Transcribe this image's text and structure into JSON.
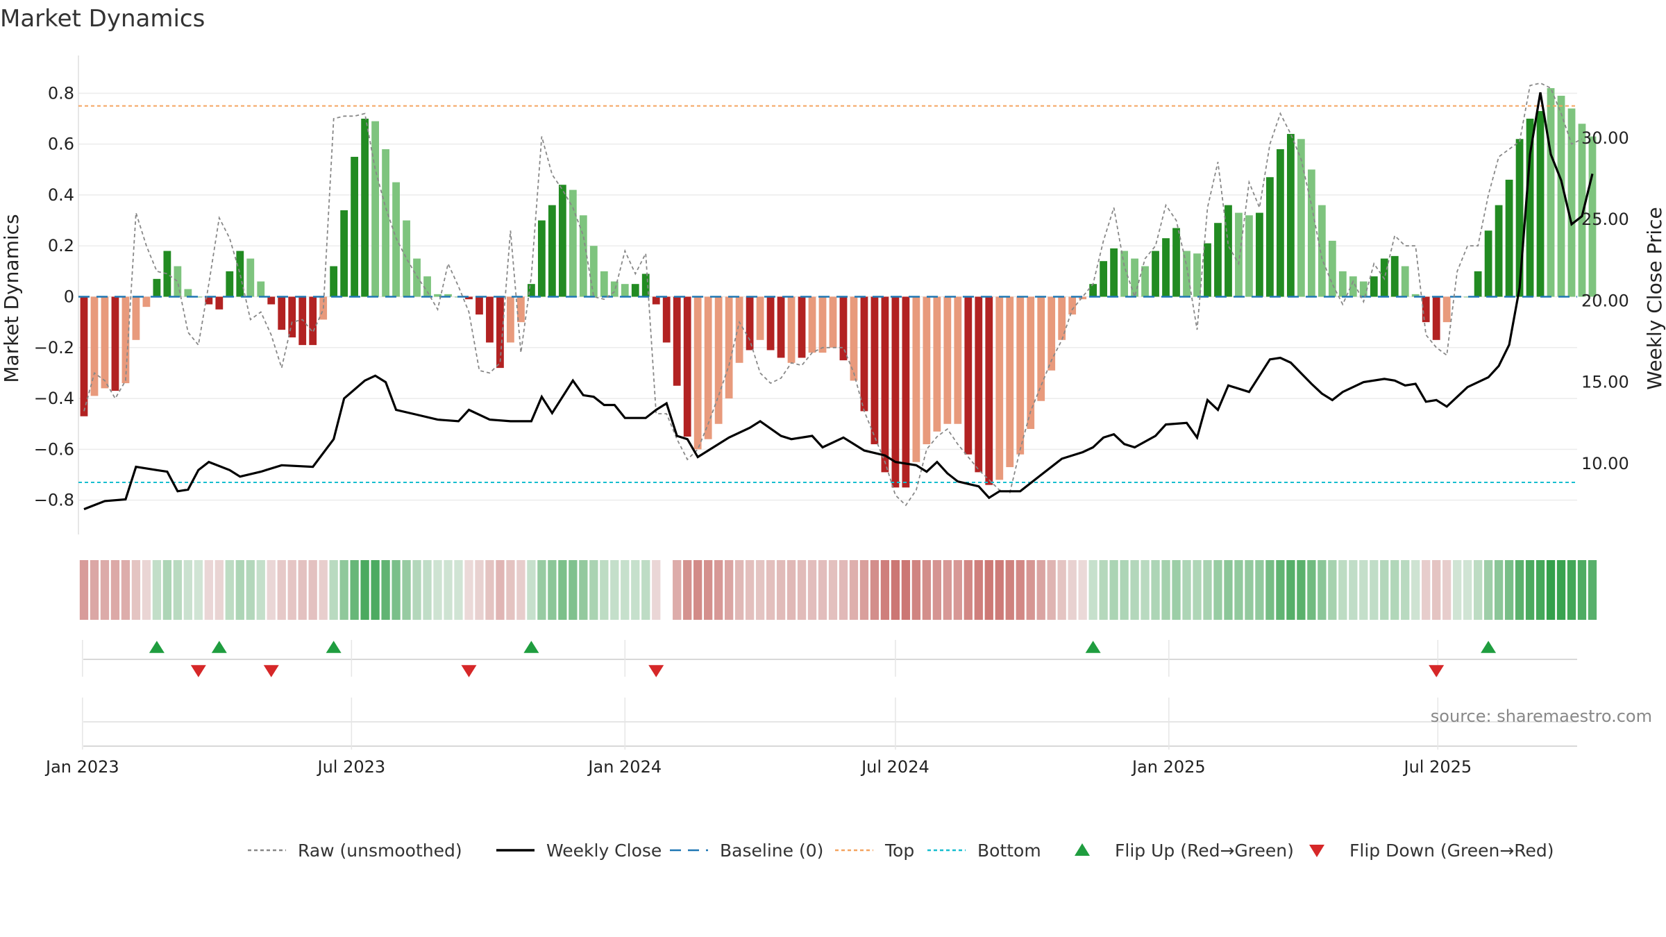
{
  "title": "Market Dynamics",
  "source": "source: sharemaestro.com",
  "colors": {
    "strong_green": "#228b22",
    "weak_green": "#7ec47e",
    "strong_red": "#b22222",
    "weak_red": "#e89a7c",
    "raw": "#888888",
    "close": "#000000",
    "baseline": "#1f77b4",
    "top": "#f4a460",
    "bottom": "#17becf",
    "flip_up": "#1f9d3f",
    "flip_down": "#d62728"
  },
  "legend": [
    {
      "key": "raw",
      "label": "Raw (unsmoothed)"
    },
    {
      "key": "close",
      "label": "Weekly Close"
    },
    {
      "key": "baseline",
      "label": "Baseline (0)"
    },
    {
      "key": "top",
      "label": "Top"
    },
    {
      "key": "bottom",
      "label": "Bottom"
    },
    {
      "key": "flip_up",
      "label": "Flip Up (Red→Green)"
    },
    {
      "key": "flip_down",
      "label": "Flip Down (Green→Red)"
    }
  ],
  "chart_data": {
    "type": "bar",
    "title": "Market Dynamics",
    "ylabel": "Market Dynamics",
    "y2label": "Weekly Close Price",
    "ylim": [
      -0.88,
      0.88
    ],
    "y2lim": [
      6.5,
      34.0
    ],
    "yticks": [
      "−0.8",
      "−0.6",
      "−0.4",
      "−0.2",
      "0",
      "0.2",
      "0.4",
      "0.6",
      "0.8"
    ],
    "yticks_values": [
      -0.8,
      -0.6,
      -0.4,
      -0.2,
      0,
      0.2,
      0.4,
      0.6,
      0.8
    ],
    "y2ticks": [
      "10.00",
      "15.00",
      "20.00",
      "25.00",
      "30.00"
    ],
    "y2ticks_values": [
      10,
      15,
      20,
      25,
      30
    ],
    "x_start": "2023-01-02",
    "x_end": "2025-09-29",
    "xticks": [
      {
        "date": "2023-01-01",
        "label": "Jan 2023"
      },
      {
        "date": "2023-07-01",
        "label": "Jul 2023"
      },
      {
        "date": "2024-01-01",
        "label": "Jan 2024"
      },
      {
        "date": "2024-07-01",
        "label": "Jul 2024"
      },
      {
        "date": "2025-01-01",
        "label": "Jan 2025"
      },
      {
        "date": "2025-07-01",
        "label": "Jul 2025"
      }
    ],
    "top_level": 0.75,
    "bottom_level": -0.73,
    "baseline_level": 0,
    "legend_position": "bottom",
    "grid": true,
    "bar_values": [
      -0.47,
      -0.39,
      -0.36,
      -0.37,
      -0.34,
      -0.17,
      -0.04,
      0.07,
      0.18,
      0.12,
      0.03,
      0.0,
      -0.03,
      -0.05,
      0.1,
      0.18,
      0.15,
      0.06,
      -0.03,
      -0.13,
      -0.16,
      -0.19,
      -0.19,
      -0.09,
      0.12,
      0.34,
      0.55,
      0.7,
      0.69,
      0.58,
      0.45,
      0.3,
      0.15,
      0.08,
      0.01,
      0.01,
      0.0,
      -0.01,
      -0.07,
      -0.18,
      -0.28,
      -0.18,
      -0.1,
      0.05,
      0.3,
      0.36,
      0.44,
      0.42,
      0.32,
      0.2,
      0.1,
      0.06,
      0.05,
      0.05,
      0.09,
      -0.03,
      -0.18,
      -0.35,
      -0.55,
      -0.6,
      -0.56,
      -0.5,
      -0.4,
      -0.26,
      -0.21,
      -0.17,
      -0.21,
      -0.24,
      -0.26,
      -0.24,
      -0.22,
      -0.22,
      -0.2,
      -0.25,
      -0.33,
      -0.45,
      -0.58,
      -0.69,
      -0.75,
      -0.75,
      -0.65,
      -0.58,
      -0.53,
      -0.5,
      -0.5,
      -0.62,
      -0.69,
      -0.74,
      -0.72,
      -0.67,
      -0.62,
      -0.52,
      -0.41,
      -0.29,
      -0.17,
      -0.07,
      -0.01,
      0.05,
      0.14,
      0.19,
      0.18,
      0.15,
      0.12,
      0.18,
      0.23,
      0.27,
      0.18,
      0.17,
      0.21,
      0.29,
      0.36,
      0.33,
      0.32,
      0.33,
      0.47,
      0.58,
      0.64,
      0.62,
      0.5,
      0.36,
      0.22,
      0.1,
      0.08,
      0.06,
      0.08,
      0.15,
      0.16,
      0.12,
      0.01,
      -0.1,
      -0.17,
      -0.1,
      0.0,
      0.0,
      0.1,
      0.26,
      0.36,
      0.46,
      0.62,
      0.7,
      0.73,
      0.82,
      0.79,
      0.74,
      0.68,
      0.63
    ],
    "bar_strength": [
      1,
      0,
      0,
      1,
      0,
      0,
      0,
      1,
      1,
      0,
      0,
      0,
      1,
      1,
      1,
      1,
      0,
      0,
      1,
      1,
      1,
      1,
      1,
      0,
      1,
      1,
      1,
      1,
      0,
      0,
      0,
      0,
      0,
      0,
      0,
      0,
      0,
      1,
      1,
      1,
      1,
      0,
      0,
      1,
      1,
      1,
      1,
      0,
      0,
      0,
      0,
      0,
      0,
      1,
      1,
      1,
      1,
      1,
      1,
      0,
      0,
      0,
      0,
      0,
      1,
      0,
      1,
      1,
      0,
      1,
      0,
      0,
      0,
      1,
      0,
      1,
      1,
      1,
      1,
      1,
      0,
      0,
      0,
      0,
      0,
      1,
      1,
      1,
      0,
      0,
      0,
      0,
      0,
      0,
      0,
      0,
      0,
      1,
      1,
      1,
      0,
      0,
      0,
      1,
      1,
      1,
      0,
      0,
      1,
      1,
      1,
      0,
      0,
      1,
      1,
      1,
      1,
      0,
      0,
      0,
      0,
      0,
      0,
      0,
      1,
      1,
      1,
      0,
      0,
      1,
      1,
      0,
      0,
      0,
      1,
      1,
      1,
      1,
      1,
      1,
      1,
      0,
      0,
      0,
      0
    ],
    "raw_values": [
      -0.45,
      -0.3,
      -0.33,
      -0.4,
      -0.33,
      0.33,
      0.2,
      0.1,
      0.09,
      0.06,
      -0.14,
      -0.19,
      0.05,
      0.31,
      0.23,
      0.09,
      -0.09,
      -0.06,
      -0.15,
      -0.28,
      -0.1,
      -0.09,
      -0.14,
      -0.05,
      0.7,
      0.71,
      0.71,
      0.72,
      0.5,
      0.35,
      0.23,
      0.15,
      0.08,
      0.02,
      -0.05,
      0.13,
      0.04,
      -0.06,
      -0.29,
      -0.3,
      -0.26,
      0.26,
      -0.22,
      0.08,
      0.63,
      0.48,
      0.42,
      0.35,
      0.24,
      0.0,
      -0.01,
      0.02,
      0.18,
      0.09,
      0.17,
      -0.46,
      -0.46,
      -0.56,
      -0.64,
      -0.6,
      -0.5,
      -0.39,
      -0.27,
      -0.1,
      -0.17,
      -0.3,
      -0.34,
      -0.32,
      -0.26,
      -0.27,
      -0.22,
      -0.2,
      -0.2,
      -0.2,
      -0.3,
      -0.45,
      -0.55,
      -0.65,
      -0.78,
      -0.82,
      -0.76,
      -0.6,
      -0.55,
      -0.52,
      -0.58,
      -0.63,
      -0.68,
      -0.72,
      -0.76,
      -0.77,
      -0.6,
      -0.45,
      -0.35,
      -0.25,
      -0.17,
      -0.05,
      0.0,
      0.05,
      0.22,
      0.35,
      0.12,
      0.0,
      0.15,
      0.2,
      0.36,
      0.3,
      0.12,
      -0.13,
      0.35,
      0.53,
      0.2,
      0.13,
      0.45,
      0.35,
      0.6,
      0.72,
      0.64,
      0.54,
      0.36,
      0.15,
      0.05,
      -0.03,
      0.06,
      -0.02,
      0.13,
      0.07,
      0.24,
      0.2,
      0.2,
      -0.15,
      -0.2,
      -0.23,
      0.1,
      0.2,
      0.2,
      0.4,
      0.55,
      0.58,
      0.61,
      0.83,
      0.84,
      0.82,
      0.72,
      0.6,
      0.62
    ]
  }
}
